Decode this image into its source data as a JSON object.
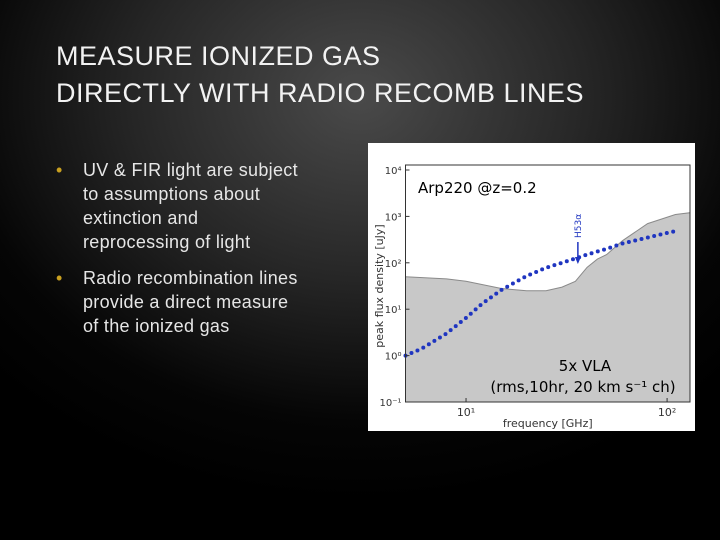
{
  "slide": {
    "title_lines": [
      "MEASURE IONIZED GAS",
      "DIRECTLY WITH RADIO RECOMB LINES"
    ],
    "bullets": [
      "UV & FIR light are subject to assumptions about extinction and reprocessing of light",
      "Radio recombination lines provide a direct measure of the ionized gas"
    ]
  },
  "chart_data": {
    "type": "line",
    "log_x": true,
    "log_y": true,
    "xlabel": "frequency [GHz]",
    "ylabel": "peak flux density [uJy]",
    "label_top": "Arp220 @z=0.2",
    "label_bottom": [
      "5x VLA",
      "(rms,10hr, 20 km s⁻¹ ch)"
    ],
    "annotations": [
      {
        "text": "H53α",
        "x": 36
      }
    ],
    "xlim": [
      5,
      130
    ],
    "ylim": [
      0.1,
      10000
    ],
    "xticks": [
      {
        "value": 10,
        "label": "10¹"
      },
      {
        "value": 100,
        "label": "10²"
      }
    ],
    "yticks": [
      {
        "value": 0.1,
        "label": "10⁻¹"
      },
      {
        "value": 1,
        "label": "10⁰"
      },
      {
        "value": 10,
        "label": "10¹"
      },
      {
        "value": 100,
        "label": "10²"
      },
      {
        "value": 1000,
        "label": "10³"
      },
      {
        "value": 10000,
        "label": "10⁴"
      }
    ],
    "series": [
      {
        "kind": "area",
        "color": "#c8c8c8",
        "x": [
          5,
          8,
          10,
          15,
          20,
          25,
          30,
          35,
          40,
          45,
          50,
          60,
          80,
          110,
          130
        ],
        "values": [
          50,
          45,
          40,
          28,
          25,
          25,
          30,
          40,
          80,
          120,
          150,
          300,
          700,
          1100,
          1200
        ]
      },
      {
        "kind": "dots",
        "color": "#1f35c0",
        "x": [
          5,
          6,
          8,
          10,
          12,
          15,
          20,
          25,
          30,
          40,
          50,
          60,
          80,
          100,
          110
        ],
        "values": [
          1,
          1.4,
          3,
          6.5,
          13,
          26,
          52,
          78,
          100,
          150,
          200,
          260,
          350,
          440,
          480
        ]
      }
    ]
  }
}
